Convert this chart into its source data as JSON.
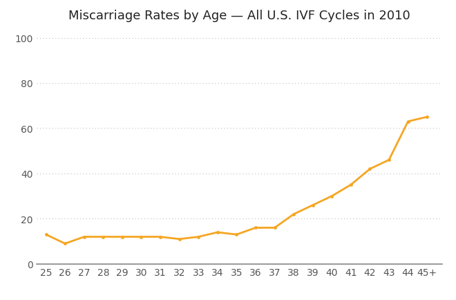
{
  "title": "Miscarriage Rates by Age — All U.S. IVF Cycles in 2010",
  "x_labels": [
    "25",
    "26",
    "27",
    "28",
    "29",
    "30",
    "31",
    "32",
    "33",
    "34",
    "35",
    "36",
    "37",
    "38",
    "39",
    "40",
    "41",
    "42",
    "43",
    "44",
    "45+"
  ],
  "x_values": [
    25,
    26,
    27,
    28,
    29,
    30,
    31,
    32,
    33,
    34,
    35,
    36,
    37,
    38,
    39,
    40,
    41,
    42,
    43,
    44,
    45
  ],
  "y_values": [
    13,
    9,
    12,
    12,
    12,
    12,
    12,
    11,
    12,
    14,
    13,
    16,
    16,
    22,
    26,
    30,
    35,
    42,
    46,
    63,
    65
  ],
  "line_color": "#F5A623",
  "marker_color": "#F5A623",
  "marker_style": "o",
  "marker_size": 3.5,
  "line_width": 2.0,
  "ylim": [
    0,
    105
  ],
  "yticks": [
    0,
    20,
    40,
    60,
    80,
    100
  ],
  "grid_color": "#bbbbbb",
  "background_color": "#ffffff",
  "title_fontsize": 13,
  "tick_fontsize": 10,
  "tick_color": "#555555"
}
